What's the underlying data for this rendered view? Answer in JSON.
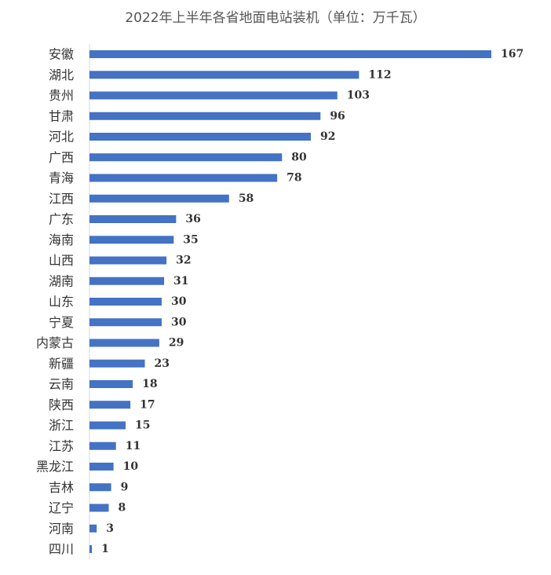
{
  "chart_data": {
    "type": "bar",
    "orientation": "horizontal",
    "title": "2022年上半年各省地面电站装机（单位：万千瓦）",
    "categories": [
      "安徽",
      "湖北",
      "贵州",
      "甘肃",
      "河北",
      "广西",
      "青海",
      "江西",
      "广东",
      "海南",
      "山西",
      "湖南",
      "山东",
      "宁夏",
      "内蒙古",
      "新疆",
      "云南",
      "陕西",
      "浙江",
      "江苏",
      "黑龙江",
      "吉林",
      "辽宁",
      "河南",
      "四川"
    ],
    "values": [
      167,
      112,
      103,
      96,
      92,
      80,
      78,
      58,
      36,
      35,
      32,
      31,
      30,
      30,
      29,
      23,
      18,
      17,
      15,
      11,
      10,
      9,
      8,
      3,
      1
    ],
    "xlim": [
      0,
      180
    ],
    "xlabel": "",
    "ylabel": "",
    "grid": false,
    "legend": "none",
    "data_labels": true,
    "bar_color": "#4472c4"
  }
}
